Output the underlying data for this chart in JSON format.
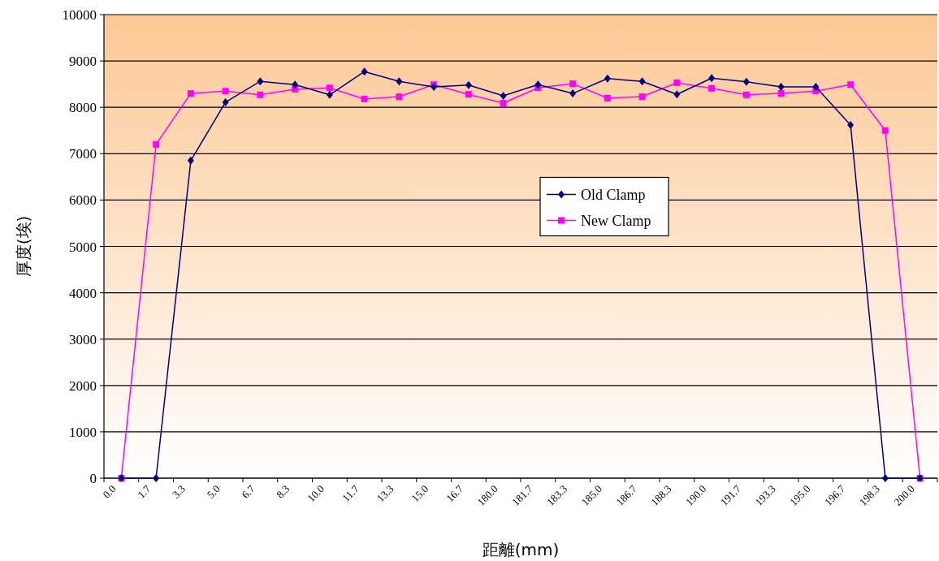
{
  "chart_data": {
    "type": "line",
    "xlabel": "距離(mm)",
    "ylabel": "厚度(埃)",
    "categories": [
      "0.0",
      "1.7",
      "3.3",
      "5.0",
      "6.7",
      "8.3",
      "10.0",
      "11.7",
      "13.3",
      "15.0",
      "16.7",
      "180.0",
      "181.7",
      "183.3",
      "185.0",
      "186.7",
      "188.3",
      "190.0",
      "191.7",
      "193.3",
      "195.0",
      "196.7",
      "198.3",
      "200.0"
    ],
    "series": [
      {
        "name": "Old Clamp",
        "color": "#000080",
        "marker": "diamond",
        "values": [
          0,
          0,
          6850,
          8110,
          8560,
          8490,
          8270,
          8770,
          8560,
          8440,
          8480,
          8250,
          8490,
          8300,
          8620,
          8560,
          8280,
          8630,
          8550,
          8440,
          8440,
          7620,
          0,
          0
        ]
      },
      {
        "name": "New Clamp",
        "color": "#ff00ff",
        "marker": "square",
        "values": [
          0,
          7200,
          8300,
          8350,
          8270,
          8390,
          8420,
          8180,
          8230,
          8490,
          8280,
          8090,
          8420,
          8510,
          8200,
          8230,
          8530,
          8410,
          8270,
          8300,
          8350,
          8490,
          7500,
          0
        ]
      }
    ],
    "ylim": [
      0,
      10000
    ],
    "yticks": [
      0,
      1000,
      2000,
      3000,
      4000,
      5000,
      6000,
      7000,
      8000,
      9000,
      10000
    ],
    "grid": "y",
    "legend": "center"
  }
}
